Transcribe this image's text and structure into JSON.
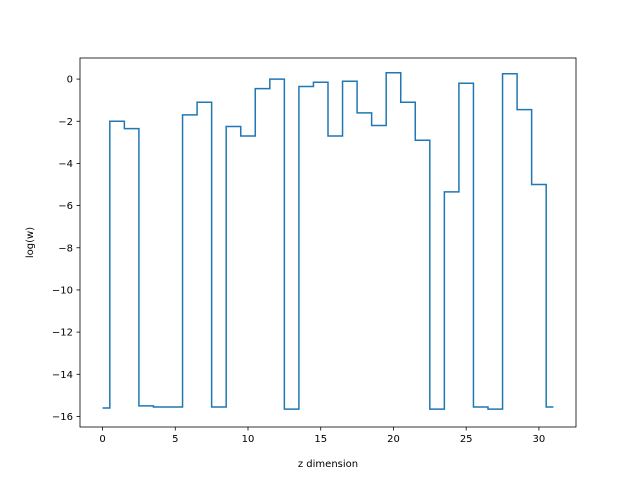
{
  "chart_data": {
    "type": "line",
    "drawstyle": "steps-mid",
    "title": "",
    "xlabel": "z dimension",
    "ylabel": "log(w)",
    "xlim": [
      -1.55,
      32.55
    ],
    "ylim": [
      -16.5,
      1.0
    ],
    "x_ticks": [
      0,
      5,
      10,
      15,
      20,
      25,
      30
    ],
    "x_tick_labels": [
      "0",
      "5",
      "10",
      "15",
      "20",
      "25",
      "30"
    ],
    "y_ticks": [
      -16,
      -14,
      -12,
      -10,
      -8,
      -6,
      -4,
      -2,
      0
    ],
    "y_tick_labels": [
      "−16",
      "−14",
      "−12",
      "−10",
      "−8",
      "−6",
      "−4",
      "−2",
      "0"
    ],
    "grid": false,
    "series": [
      {
        "color": "#1f77b4",
        "x": [
          0,
          1,
          2,
          3,
          4,
          5,
          6,
          7,
          8,
          9,
          10,
          11,
          12,
          13,
          14,
          15,
          16,
          17,
          18,
          19,
          20,
          21,
          22,
          23,
          24,
          25,
          26,
          27,
          28,
          29,
          30,
          31
        ],
        "values": [
          -15.6,
          -2.0,
          -2.35,
          -15.5,
          -15.55,
          -15.55,
          -1.7,
          -1.1,
          -15.55,
          -2.25,
          -2.7,
          -0.45,
          0.0,
          -15.65,
          -0.35,
          -0.15,
          -2.7,
          -0.1,
          -1.6,
          -2.2,
          0.3,
          -1.1,
          -2.9,
          -15.65,
          -5.35,
          -0.2,
          -15.55,
          -15.65,
          0.25,
          -1.45,
          -5.0,
          -15.55
        ]
      }
    ]
  }
}
